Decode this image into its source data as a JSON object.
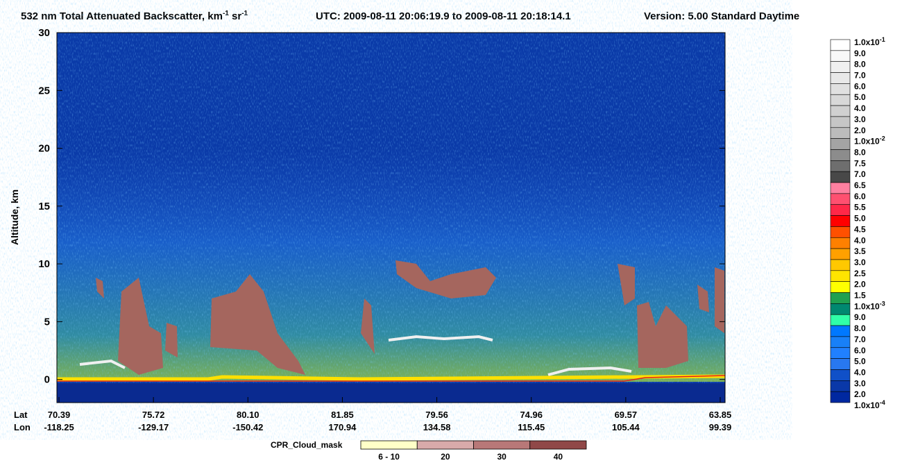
{
  "title": {
    "main": "532 nm Total Attenuated Backscatter, km",
    "exp1": "-1",
    "sr": " sr",
    "exp2": "-1",
    "time": "UTC:  2009-08-11 20:06:19.9  to  2009-08-11 20:18:14.1",
    "version": "Version: 5.00  Standard  Daytime"
  },
  "chart_data": {
    "type": "heatmap",
    "y_label": "Altitude, km",
    "ylim": [
      -2,
      30
    ],
    "yticks": [
      0,
      5,
      10,
      15,
      20,
      25,
      30
    ],
    "row_labels": [
      "Lat",
      "Lon"
    ],
    "lat": [
      "70.39",
      "75.72",
      "80.10",
      "81.85",
      "79.56",
      "74.96",
      "69.57",
      "63.85"
    ],
    "lon": [
      "-118.25",
      "-129.17",
      "-150.42",
      "170.94",
      "134.58",
      "115.45",
      "105.44",
      "99.39"
    ]
  },
  "colorbar": {
    "labels": [
      {
        "mantissa": "1.0x10",
        "exponent": "-1"
      },
      "9.0",
      "8.0",
      "7.0",
      "6.0",
      "5.0",
      "4.0",
      "3.0",
      "2.0",
      {
        "mantissa": "1.0x10",
        "exponent": "-2"
      },
      "8.0",
      "7.5",
      "7.0",
      "6.5",
      "6.0",
      "5.5",
      "5.0",
      "4.5",
      "4.0",
      "3.5",
      "3.0",
      "2.5",
      "2.0",
      "1.5",
      {
        "mantissa": "1.0x10",
        "exponent": "-3"
      },
      "9.0",
      "8.0",
      "7.0",
      "6.0",
      "5.0",
      "4.0",
      "3.0",
      "2.0",
      {
        "mantissa": "1.0x10",
        "exponent": "-4"
      }
    ],
    "colors": [
      "#ffffff",
      "#f8f8f8",
      "#f0f0f0",
      "#e8e8e8",
      "#e0e0e0",
      "#d8d8d8",
      "#d0d0d0",
      "#c6c6c6",
      "#bcbcbc",
      "#a4a4a4",
      "#8c8c8c",
      "#6e6e6e",
      "#484848",
      "#ff80a0",
      "#ff5070",
      "#ff2848",
      "#ff0000",
      "#ff5000",
      "#ff8000",
      "#ffa000",
      "#ffc800",
      "#ffe400",
      "#ffff00",
      "#20a050",
      "#008870",
      "#30ffa8",
      "#0078ff",
      "#1880f8",
      "#2080ff",
      "#2878f0",
      "#1050c8",
      "#0a38a8",
      "#0028a0"
    ]
  },
  "cloud_mask": {
    "title": "CPR_Cloud_mask",
    "labels": [
      "6 - 10",
      "20",
      "30",
      "40"
    ],
    "colors": [
      "#ffffc8",
      "#d8aaaa",
      "#b87878",
      "#904848"
    ]
  }
}
